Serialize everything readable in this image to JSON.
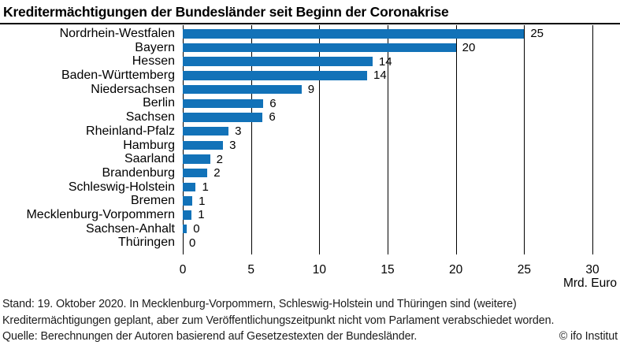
{
  "title": "Kreditermächtigungen der Bundesländer seit Beginn der Coronakrise",
  "chart_data": {
    "type": "bar",
    "orientation": "horizontal",
    "title": "Kreditermächtigungen der Bundesländer seit Beginn der Coronakrise",
    "categories": [
      "Nordrhein-Westfalen",
      "Bayern",
      "Hessen",
      "Baden-Württemberg",
      "Niedersachsen",
      "Berlin",
      "Sachsen",
      "Rheinland-Pfalz",
      "Hamburg",
      "Saarland",
      "Brandenburg",
      "Schleswig-Holstein",
      "Bremen",
      "Mecklenburg-Vorpommern",
      "Sachsen-Anhalt",
      "Thüringen"
    ],
    "values": [
      25,
      20,
      14,
      14,
      9,
      6,
      6,
      3,
      3,
      2,
      2,
      1,
      1,
      1,
      0,
      0
    ],
    "value_labels": [
      "25",
      "20",
      "14",
      "14",
      "9",
      "6",
      "6",
      "3",
      "3",
      "2",
      "2",
      "1",
      "1",
      "1",
      "0",
      "0"
    ],
    "bar_values": [
      25,
      20,
      13.9,
      13.5,
      8.7,
      5.9,
      5.85,
      3.35,
      2.95,
      2.0,
      1.8,
      0.95,
      0.7,
      0.65,
      0.3,
      0
    ],
    "x_ticks": [
      0,
      5,
      10,
      15,
      20,
      25,
      30
    ],
    "xlim": [
      0,
      30
    ],
    "xlabel": "Mrd. Euro",
    "bar_color": "#1272b8",
    "grid": "vertical-black-behind-bars",
    "legend": "none"
  },
  "footer": {
    "line1": "Stand: 19. Oktober 2020. In Mecklenburg-Vorpommern, Schleswig-Holstein und Thüringen sind (weitere)",
    "line2": "Kreditermächtigungen geplant, aber zum Veröffentlichungszeitpunkt nicht vom Parlament verabschiedet worden.",
    "line3": "Quelle: Berechnungen der Autoren basierend auf Gesetzestexten der Bundesländer.",
    "copyright": "© ifo Institut"
  }
}
